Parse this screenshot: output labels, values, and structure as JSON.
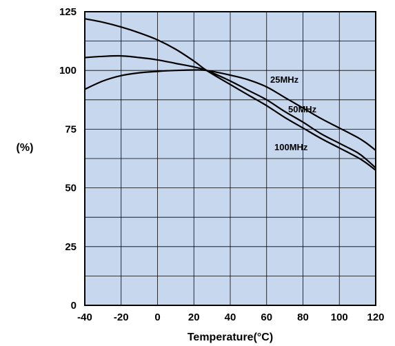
{
  "chart_data": {
    "type": "line",
    "title": "",
    "xlabel": "Temperature(°C)",
    "ylabel": "(%)",
    "xlim": [
      -40,
      120
    ],
    "ylim": [
      0,
      125
    ],
    "x_ticks": [
      -40,
      -20,
      0,
      20,
      40,
      60,
      80,
      100,
      120
    ],
    "y_ticks": [
      0,
      25,
      50,
      75,
      100,
      125
    ],
    "x_tick_labels": [
      "-40",
      "-20",
      "0",
      "20",
      "40",
      "60",
      "80",
      "100",
      "120"
    ],
    "y_tick_labels": [
      "0",
      "25",
      "50",
      "75",
      "100",
      "125"
    ],
    "grid": true,
    "colors": {
      "plot_background": "#c7d7ee",
      "grid": "#000000",
      "line": "#000000"
    },
    "series": [
      {
        "name": "25MHz",
        "x": [
          -40,
          -30,
          -20,
          -10,
          0,
          10,
          20,
          27,
          40,
          50,
          60,
          70,
          80,
          90,
          100,
          110,
          115,
          120
        ],
        "y": [
          92,
          95.5,
          97.8,
          99,
          99.6,
          100,
          100.2,
          100,
          98,
          96,
          93,
          88.5,
          84,
          79.5,
          75.5,
          71.5,
          69,
          66
        ]
      },
      {
        "name": "50MHz",
        "x": [
          -40,
          -30,
          -20,
          -10,
          0,
          10,
          20,
          27,
          40,
          50,
          60,
          70,
          80,
          90,
          100,
          110,
          115,
          120
        ],
        "y": [
          105.5,
          106,
          106.2,
          105.5,
          104.5,
          103,
          101.5,
          100,
          95.5,
          91.5,
          87.5,
          82.5,
          78,
          73,
          69,
          65,
          62,
          58.5
        ]
      },
      {
        "name": "100MHz",
        "x": [
          -40,
          -30,
          -20,
          -10,
          0,
          10,
          20,
          27,
          40,
          50,
          60,
          70,
          80,
          90,
          100,
          110,
          115,
          120
        ],
        "y": [
          122,
          120.5,
          118.5,
          116,
          113,
          109,
          104,
          100,
          94,
          89.5,
          85,
          80,
          75.5,
          71,
          67,
          63,
          60.5,
          57.5
        ]
      }
    ]
  }
}
